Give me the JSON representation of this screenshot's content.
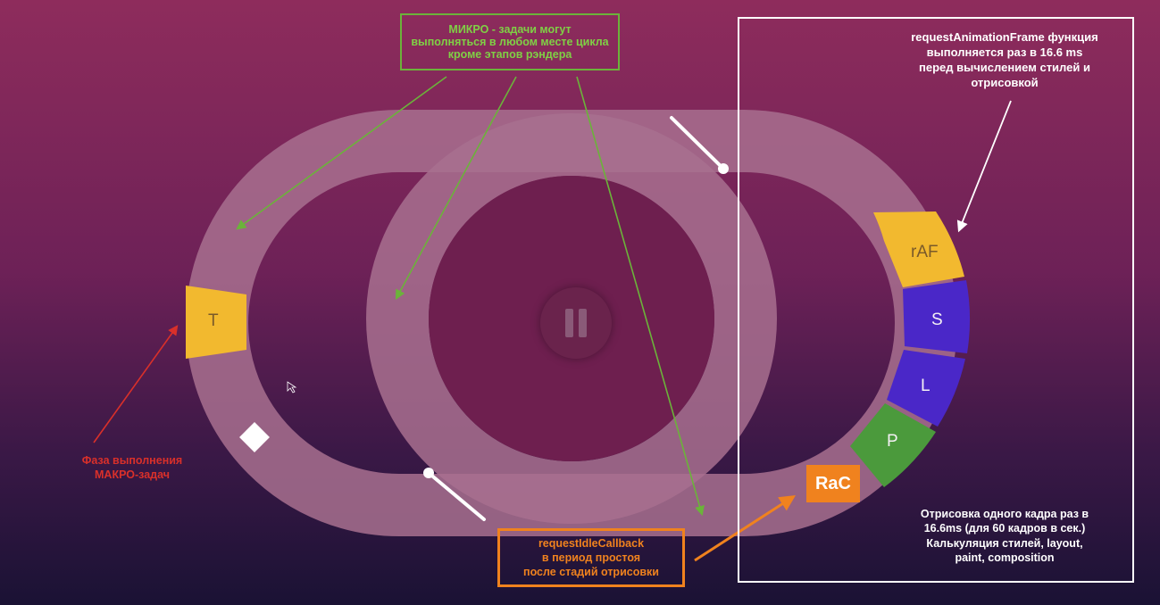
{
  "micro_note": {
    "line1": "МИКРО - задачи могут",
    "line2": "выполняться в любом месте цикла",
    "line3": "кроме этапов рэндера"
  },
  "raf_note": {
    "line1": "requestAnimationFrame функция",
    "line2": "выполняется раз в 16.6 ms",
    "line3": "перед вычислением стилей и",
    "line4": "отрисовкой"
  },
  "macro_note": {
    "line1": "Фаза выполнения",
    "line2": "МАКРО-задач"
  },
  "idle_note": {
    "line1": "requestIdleCallback",
    "line2": "в период простоя",
    "line3": "после стадий отрисовки"
  },
  "paint_note": {
    "line1": "Отрисовка одного кадра раз в",
    "line2": "16.6ms (для 60 кадров в сек.)",
    "line3": "Калькуляция стилей, layout,",
    "line4": "paint, composition"
  },
  "segments": {
    "task": "T",
    "raf": "rAF",
    "style": "S",
    "layout": "L",
    "paint": "P",
    "rac": "RaC"
  },
  "colors": {
    "micro": "#6bb33a",
    "macro": "#d9302a",
    "idle": "#f0821e",
    "task_segment": "#f2b92f",
    "raf_segment": "#f2b92f",
    "style_segment": "#4a27c8",
    "layout_segment": "#4a27c8",
    "paint_segment": "#4b9a3c",
    "track": "#a8708f"
  },
  "icons": {
    "pause": "pause-icon",
    "cursor": "cursor-icon",
    "diamond": "diamond-icon"
  }
}
